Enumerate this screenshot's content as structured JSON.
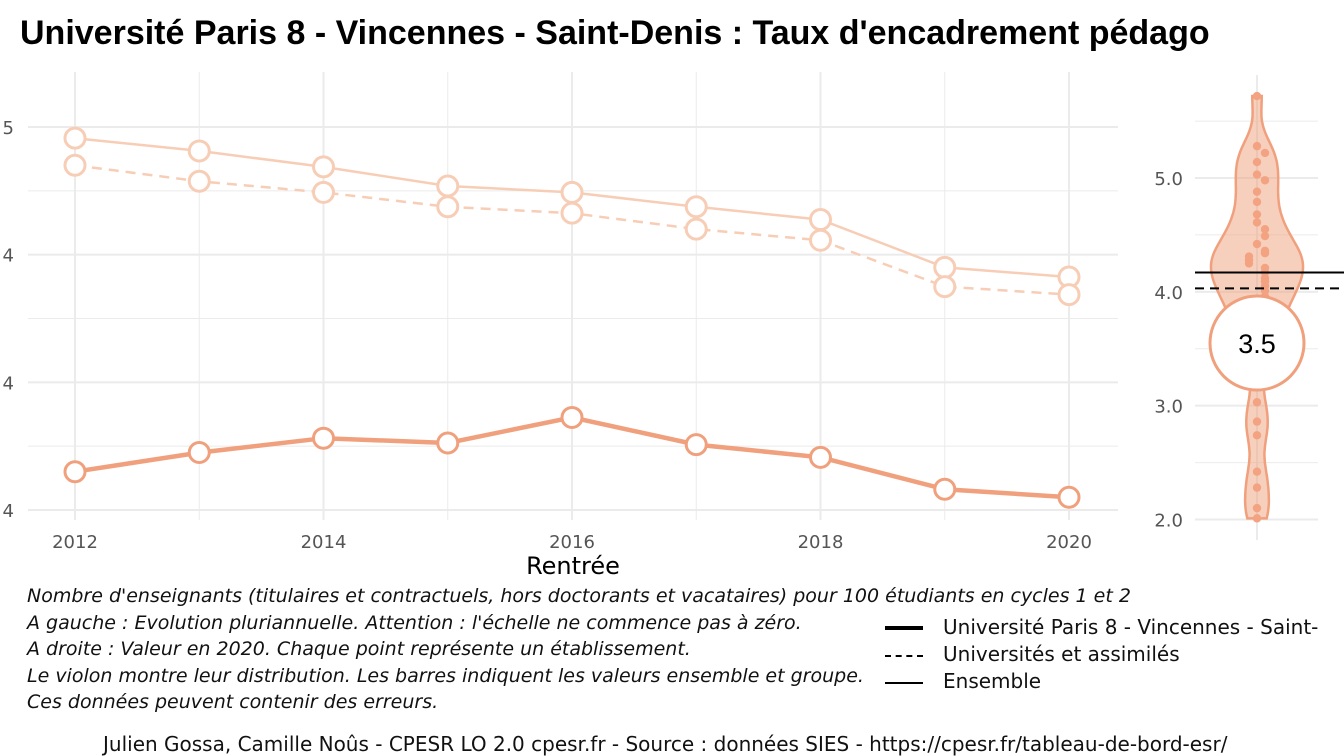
{
  "title": "Université Paris 8 - Vincennes - Saint-Denis  :  Taux d'encadrement pédago",
  "colors": {
    "accent": "#f0a07c",
    "accent_light": "#f7cdb6",
    "grid": "#ebebeb",
    "dot": "#f4a382"
  },
  "chart_data": [
    {
      "type": "line",
      "xlabel": "Rentrée",
      "ylabel": "",
      "x": [
        2012,
        2013,
        2014,
        2015,
        2016,
        2017,
        2018,
        2019,
        2020
      ],
      "xticks": [
        "2012",
        "2014",
        "2016",
        "2018",
        "2020"
      ],
      "yticks": [
        "5",
        "4",
        "4",
        "4"
      ],
      "ylim": [
        0,
        1
      ],
      "series": [
        {
          "name": "Ensemble",
          "linestyle": "solid",
          "color": "#f7cdb6",
          "values": [
            0.93,
            0.85,
            0.75,
            0.63,
            0.59,
            0.5,
            0.42,
            0.12,
            0.06
          ]
        },
        {
          "name": "Universités et assimilés",
          "linestyle": "dashed",
          "color": "#f7cdb6",
          "values": [
            0.76,
            0.66,
            0.59,
            0.5,
            0.46,
            0.36,
            0.29,
            0.0,
            -0.05
          ]
        },
        {
          "name": "Université Paris 8 - Vincennes - Saint-",
          "linestyle": "solid-bold",
          "color": "#f0a07c",
          "values": [
            -1.16,
            -1.04,
            -0.95,
            -0.98,
            -0.82,
            -0.99,
            -1.07,
            -1.27,
            -1.32
          ]
        }
      ]
    },
    {
      "type": "violin",
      "yticks": [
        "5.0",
        "4.0",
        "3.0",
        "2.0"
      ],
      "ylim": [
        1.9,
        5.8
      ],
      "highlight_value": "3.5",
      "highlight_y": 3.55,
      "reference_lines": {
        "ensemble": 4.17,
        "universites": 4.03
      },
      "points": [
        5.72,
        5.28,
        5.22,
        5.14,
        5.03,
        4.98,
        4.88,
        4.79,
        4.68,
        4.61,
        4.55,
        4.49,
        4.42,
        4.36,
        4.34,
        4.31,
        4.28,
        4.25,
        4.21,
        4.17,
        4.12,
        4.09,
        4.05,
        4.01,
        3.96,
        3.91,
        3.85,
        3.78,
        3.7,
        3.62,
        3.55,
        3.47,
        3.38,
        3.03,
        2.86,
        2.74,
        2.42,
        2.28,
        2.1,
        2.01
      ]
    }
  ],
  "notes": [
    "Nombre d'enseignants (titulaires et contractuels, hors doctorants et vacataires) pour 100 étudiants en cycles 1 et 2",
    "A gauche : Evolution pluriannuelle. Attention : l'échelle ne commence pas à zéro.",
    "A droite : Valeur en 2020. Chaque point représente un établissement.",
    "Le violon montre leur distribution. Les barres indiquent les valeurs ensemble et groupe.",
    "Ces données peuvent contenir des erreurs."
  ],
  "legend": [
    {
      "label": "Université Paris 8 - Vincennes - Saint-",
      "style": "solid-bold"
    },
    {
      "label": "Universités et assimilés",
      "style": "dashed"
    },
    {
      "label": "Ensemble",
      "style": "solid"
    }
  ],
  "caption": "Julien Gossa, Camille Noûs - CPESR LO 2.0 cpesr.fr - Source : données SIES - https://cpesr.fr/tableau-de-bord-esr/"
}
